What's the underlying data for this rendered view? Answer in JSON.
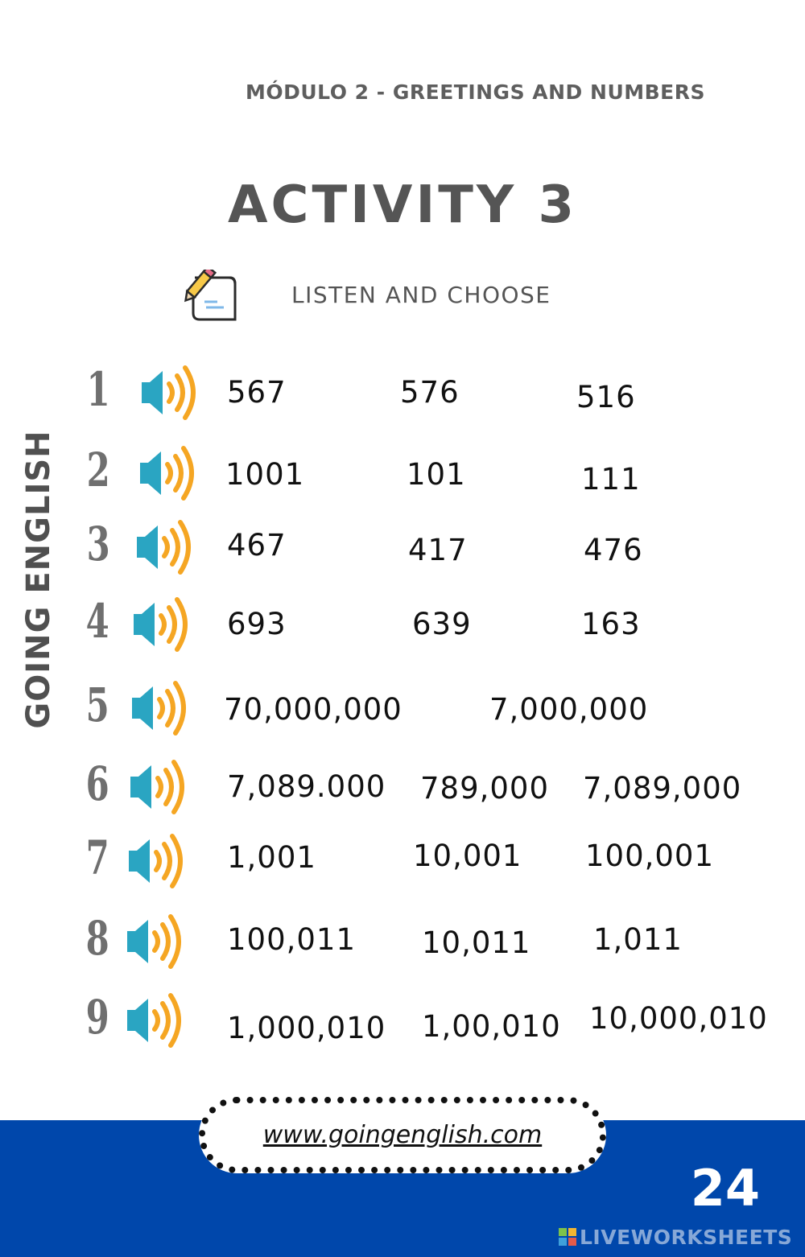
{
  "header": {
    "module": "MÓDULO  2 - GREETINGS AND NUMBERS",
    "title": "ACTIVITY 3",
    "instruction": "LISTEN AND CHOOSE",
    "side_label": "GOING ENGLISH"
  },
  "icons": {
    "instruction_icon": "pencil-document-icon",
    "audio_icon": "speaker-audio-icon"
  },
  "colors": {
    "speaker_body": "#2aa5c2",
    "sound_waves": "#f5a623",
    "footer_blue": "#0047ab"
  },
  "questions": [
    {
      "number": "1",
      "options": [
        "567",
        "576",
        "516"
      ]
    },
    {
      "number": "2",
      "options": [
        "1001",
        "101",
        "111"
      ]
    },
    {
      "number": "3",
      "options": [
        "467",
        "417",
        "476"
      ]
    },
    {
      "number": "4",
      "options": [
        "693",
        "639",
        "163"
      ]
    },
    {
      "number": "5",
      "options": [
        "70,000,000",
        "7,000,000"
      ]
    },
    {
      "number": "6",
      "options": [
        "7,089.000",
        "789,000",
        "7,089,000"
      ]
    },
    {
      "number": "7",
      "options": [
        "1,001",
        "10,001",
        "100,001"
      ]
    },
    {
      "number": "8",
      "options": [
        "100,011",
        "10,011",
        "1,011"
      ]
    },
    {
      "number": "9",
      "options": [
        "1,000,010",
        "1,00,010",
        "10,000,010"
      ]
    }
  ],
  "footer": {
    "website": "www.goingenglish.com",
    "page_number": "24",
    "watermark": "LIVEWORKSHEETS"
  }
}
